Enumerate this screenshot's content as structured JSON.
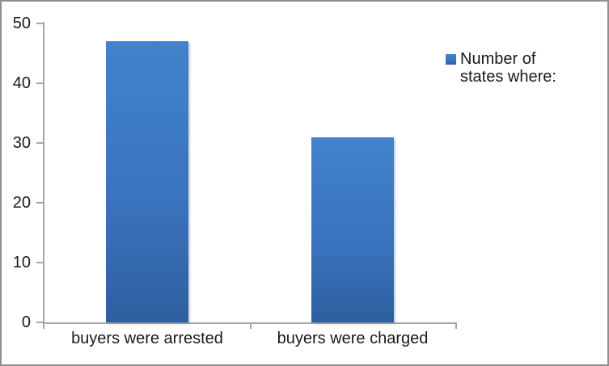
{
  "chart_data": {
    "type": "bar",
    "title": "",
    "categories": [
      "buyers were arrested",
      "buyers were charged"
    ],
    "series": [
      {
        "name": "Number of states where:",
        "values": [
          47,
          31
        ]
      }
    ],
    "ylim": [
      0,
      50
    ],
    "yticks": [
      0,
      10,
      20,
      30,
      40,
      50
    ],
    "xlabel": "",
    "ylabel": "",
    "grid": false,
    "legend_position": "right",
    "legend": {
      "lines": [
        "Number of",
        "states where:"
      ]
    },
    "colors": {
      "bar_top": "#4282cb",
      "bar_mid": "#3a74bf",
      "bar_bottom": "#2e5f9f",
      "axis": "#a6a6a6",
      "text": "#1a1a1a",
      "frame_border": "#8f8f8f",
      "background": "#ffffff"
    }
  }
}
